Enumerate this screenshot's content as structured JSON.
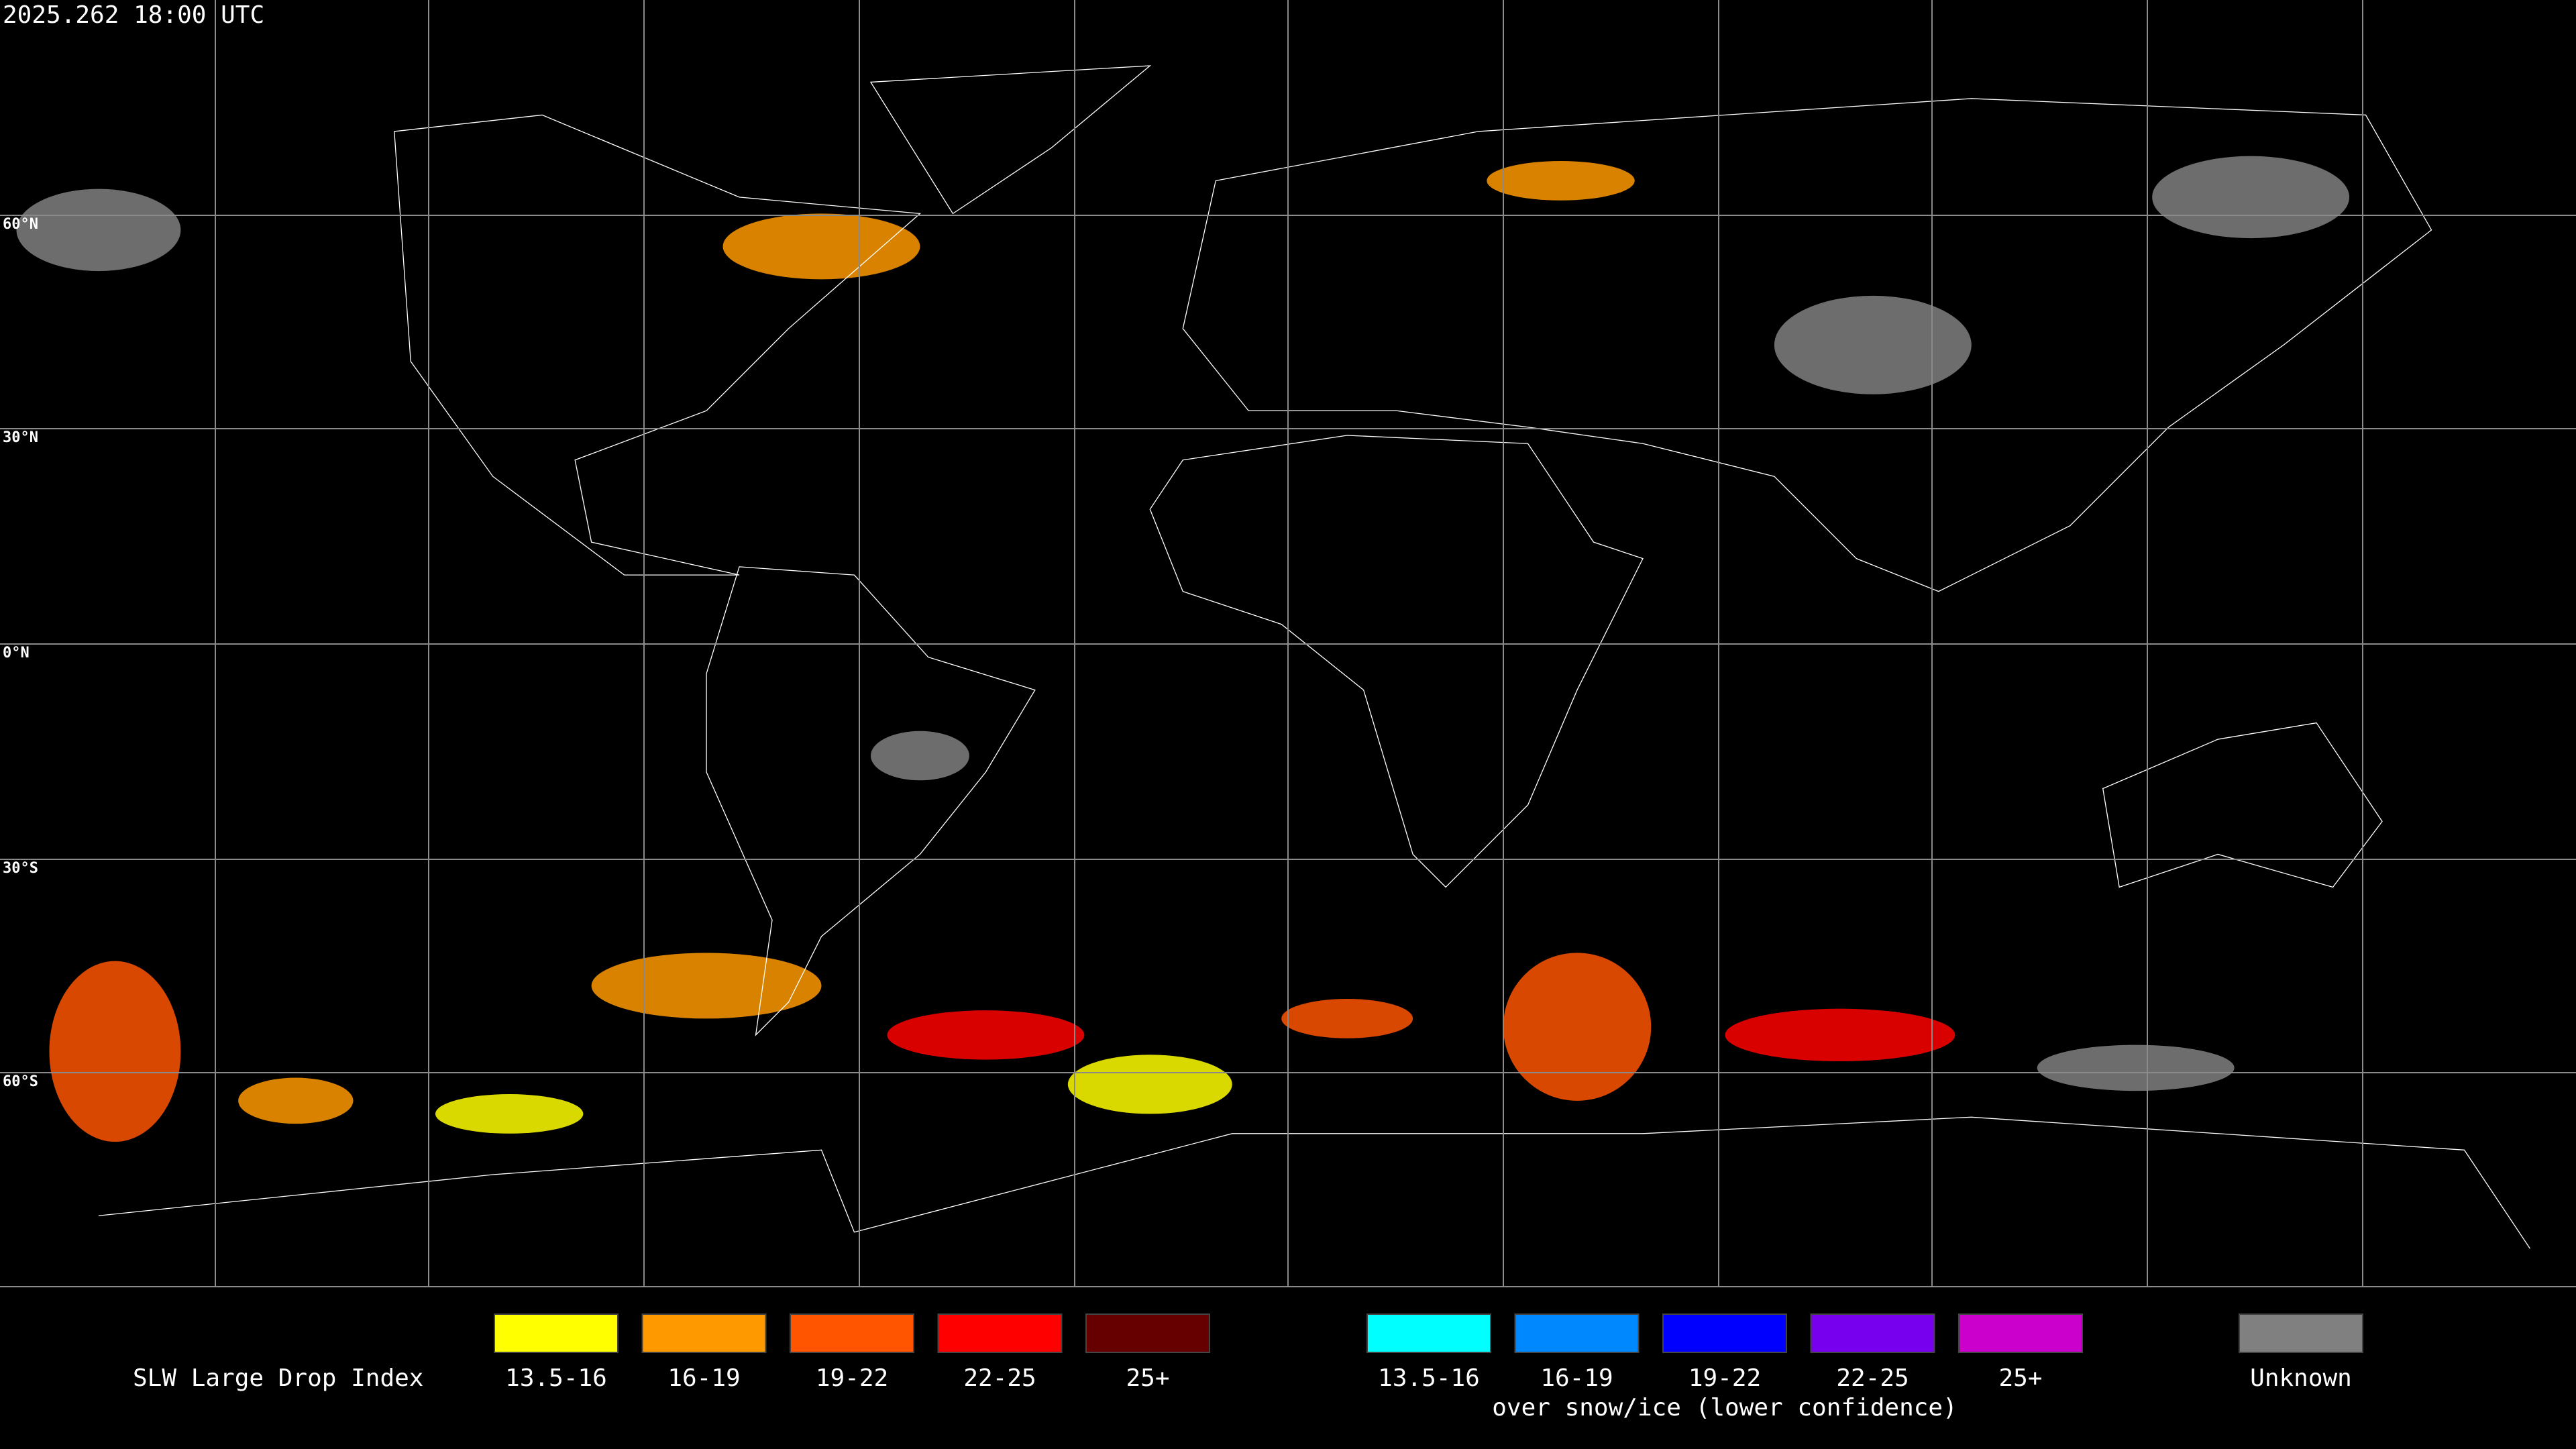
{
  "header": {
    "timestamp": "2025.262 18:00 UTC"
  },
  "map": {
    "latitude_labels": [
      "60°N",
      "30°N",
      "0°N",
      "30°S",
      "60°S"
    ]
  },
  "legend": {
    "title": "SLW Large Drop Index",
    "groups": [
      {
        "items": [
          {
            "label": "13.5-16",
            "color": "#ffff00"
          },
          {
            "label": "16-19",
            "color": "#ff9900"
          },
          {
            "label": "19-22",
            "color": "#ff5500"
          },
          {
            "label": "22-25",
            "color": "#ff0000"
          },
          {
            "label": "25+",
            "color": "#660000"
          }
        ]
      },
      {
        "caption": "over snow/ice (lower confidence)",
        "items": [
          {
            "label": "13.5-16",
            "color": "#00ffff"
          },
          {
            "label": "16-19",
            "color": "#0088ff"
          },
          {
            "label": "19-22",
            "color": "#0000ff"
          },
          {
            "label": "22-25",
            "color": "#7700ee"
          },
          {
            "label": "25+",
            "color": "#cc00cc"
          }
        ]
      },
      {
        "items": [
          {
            "label": "Unknown",
            "color": "#808080"
          }
        ]
      }
    ]
  }
}
